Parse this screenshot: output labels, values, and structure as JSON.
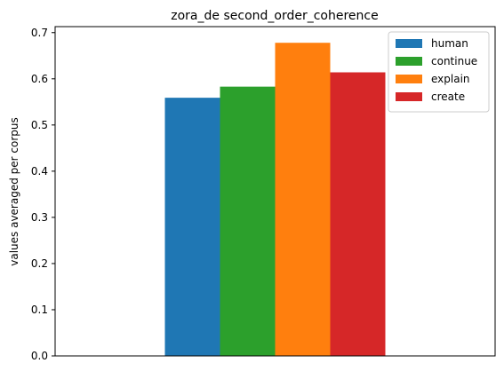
{
  "chart_data": {
    "type": "bar",
    "title": "zora_de second_order_coherence",
    "xlabel": "",
    "ylabel": "values averaged per corpus",
    "categories": [
      ""
    ],
    "ylim": [
      0,
      0.713
    ],
    "yticks": [
      0.0,
      0.1,
      0.2,
      0.3,
      0.4,
      0.5,
      0.6,
      0.7
    ],
    "ytick_labels": [
      "0.0",
      "0.1",
      "0.2",
      "0.3",
      "0.4",
      "0.5",
      "0.6",
      "0.7"
    ],
    "grid": false,
    "legend_position": "top-right",
    "series": [
      {
        "name": "human",
        "values": [
          0.559
        ],
        "color": "#1f77b4"
      },
      {
        "name": "continue",
        "values": [
          0.583
        ],
        "color": "#2ca02c"
      },
      {
        "name": "explain",
        "values": [
          0.678
        ],
        "color": "#ff7f0e"
      },
      {
        "name": "create",
        "values": [
          0.614
        ],
        "color": "#d62728"
      }
    ]
  }
}
